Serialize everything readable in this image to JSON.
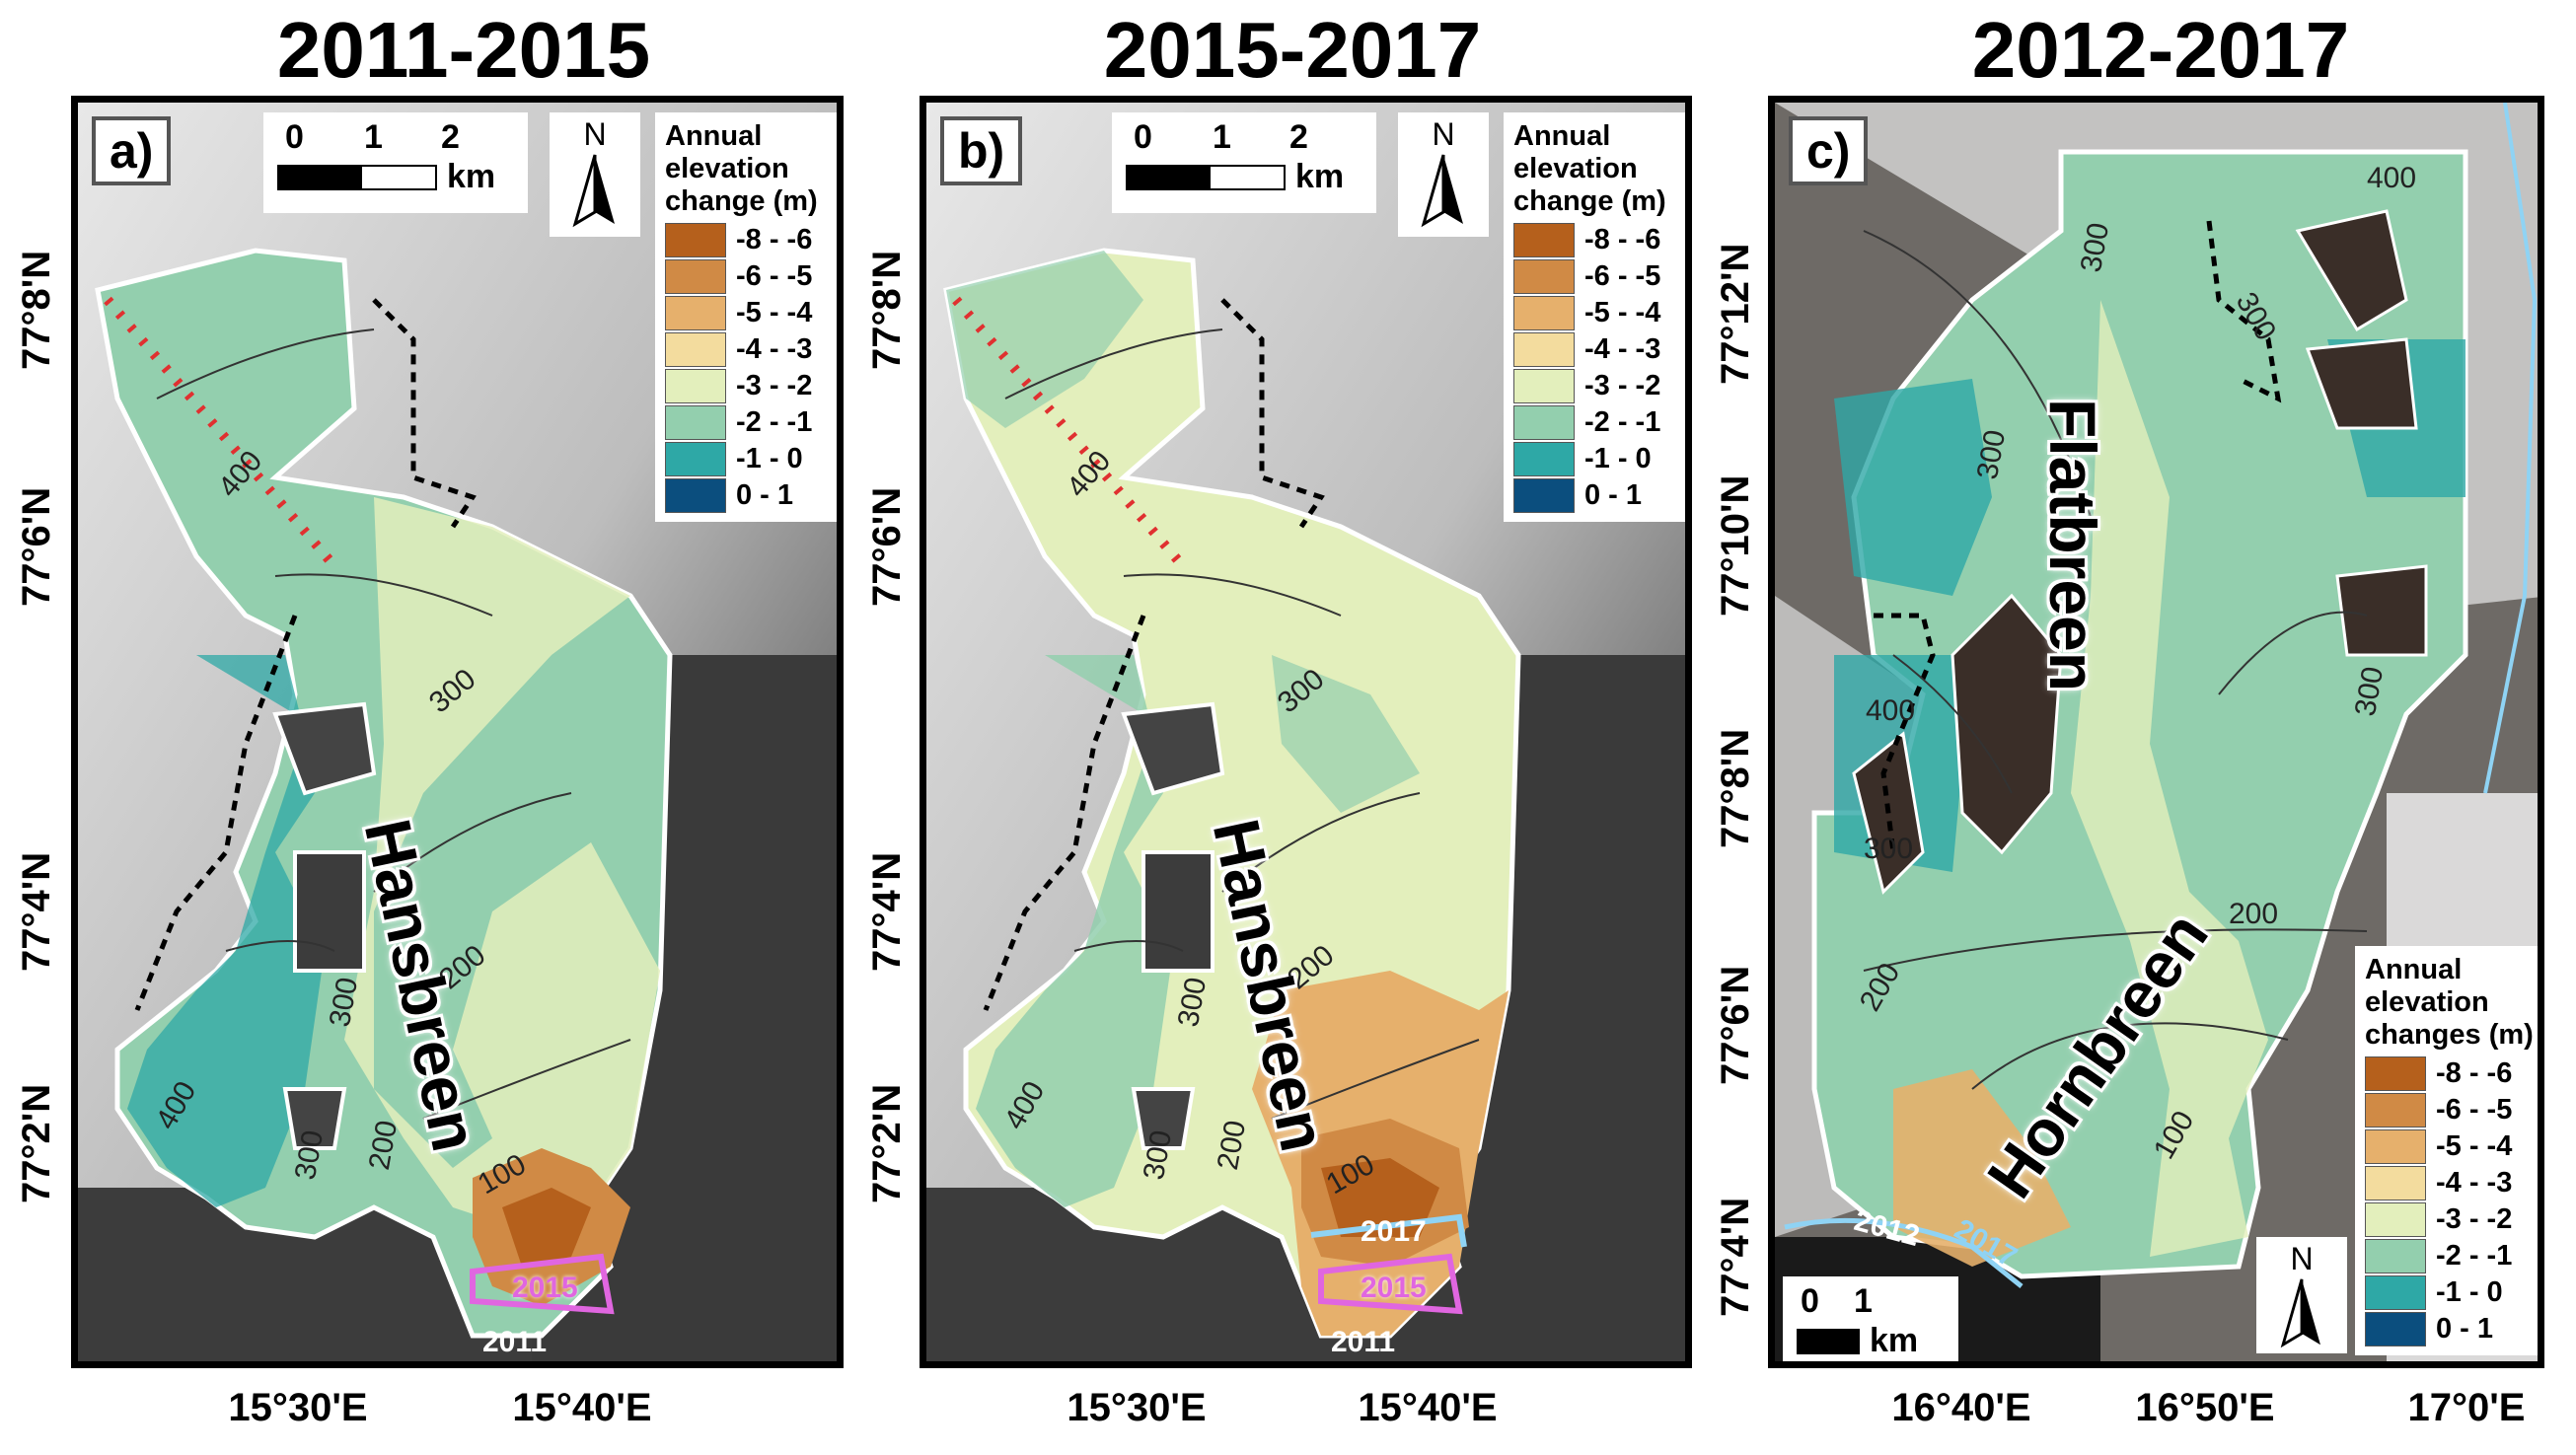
{
  "panels": [
    {
      "title": "2011-2015",
      "label": "a)",
      "glacier": "Hansbreen",
      "contours": [
        "400",
        "300",
        "300",
        "300",
        "200",
        "200",
        "100",
        "400"
      ],
      "front_years": [
        "2015",
        "2011"
      ]
    },
    {
      "title": "2015-2017",
      "label": "b)",
      "glacier": "Hansbreen",
      "contours": [
        "400",
        "300",
        "300",
        "300",
        "200",
        "200",
        "100",
        "400"
      ],
      "front_years": [
        "2017",
        "2015",
        "2011"
      ]
    },
    {
      "title": "2012-2017",
      "label": "c)",
      "glaciers": [
        "Flatbreen",
        "Hornbreen"
      ],
      "contours": [
        "400",
        "300",
        "300",
        "300",
        "300",
        "400",
        "300",
        "200",
        "200",
        "100"
      ],
      "front_years": [
        "2012",
        "2017"
      ]
    }
  ],
  "scalebar_ab": {
    "ticks": [
      "0",
      "1",
      "2"
    ],
    "unit": "km"
  },
  "scalebar_c": {
    "ticks": [
      "0",
      "1"
    ],
    "unit": "km"
  },
  "north": "N",
  "legend_ab": {
    "title": [
      "Annual",
      "elevation",
      "change (m)"
    ],
    "items": [
      {
        "label": "-8 - -6",
        "color": "#b5601c"
      },
      {
        "label": "-6 - -5",
        "color": "#d08a45"
      },
      {
        "label": "-5 - -4",
        "color": "#e6b06c"
      },
      {
        "label": "-4 - -3",
        "color": "#f3dc9e"
      },
      {
        "label": "-3 - -2",
        "color": "#e3efbc"
      },
      {
        "label": "-2 - -1",
        "color": "#93cfae"
      },
      {
        "label": "-1 - 0",
        "color": "#2ea8a6"
      },
      {
        "label": "0 - 1",
        "color": "#0b4e7e"
      }
    ]
  },
  "legend_c": {
    "title": [
      "Annual",
      "elevation",
      "changes (m)"
    ]
  },
  "xticks_a": [
    "15°30'E",
    "15°40'E"
  ],
  "xticks_b": [
    "15°30'E",
    "15°40'E"
  ],
  "xticks_c": [
    "16°40'E",
    "16°50'E",
    "17°0'E"
  ],
  "yticks_a": [
    "77°8'N",
    "77°6'N",
    "77°4'N",
    "77°2'N"
  ],
  "yticks_b": [
    "77°8'N",
    "77°6'N",
    "77°4'N",
    "77°2'N"
  ],
  "yticks_c": [
    "77°12'N",
    "77°10'N",
    "77°8'N",
    "77°6'N",
    "77°4'N"
  ]
}
